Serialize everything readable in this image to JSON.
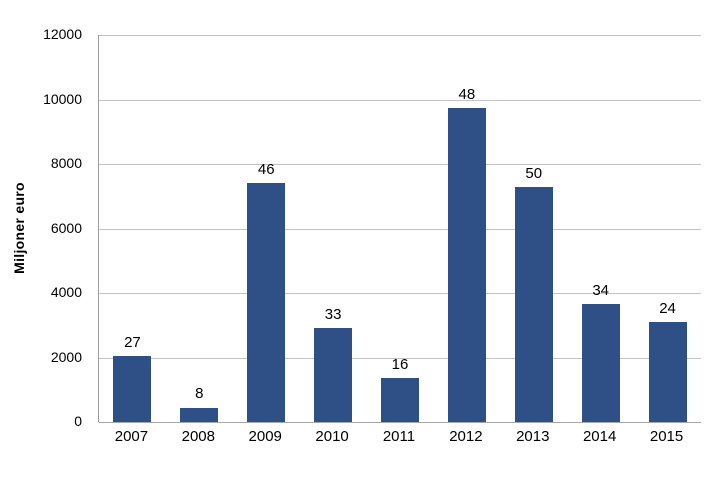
{
  "chart_data": {
    "type": "bar",
    "title": "",
    "xlabel": "",
    "ylabel": "Miljoner euro",
    "categories": [
      "2007",
      "2008",
      "2009",
      "2010",
      "2011",
      "2012",
      "2013",
      "2014",
      "2015"
    ],
    "values": [
      2050,
      450,
      7400,
      2900,
      1350,
      9750,
      7300,
      3650,
      3100
    ],
    "bar_labels": [
      "27",
      "8",
      "46",
      "33",
      "16",
      "48",
      "50",
      "34",
      "24"
    ],
    "yticks": [
      0,
      2000,
      4000,
      6000,
      8000,
      10000,
      12000
    ],
    "ylim": [
      0,
      12000
    ],
    "grid": true,
    "legend_position": "none",
    "colors": {
      "bar": "#2F5087",
      "gridline": "#C3C3C3",
      "axis": "#9C9C9C",
      "text": "#000000",
      "background": "#FFFFFF"
    }
  }
}
